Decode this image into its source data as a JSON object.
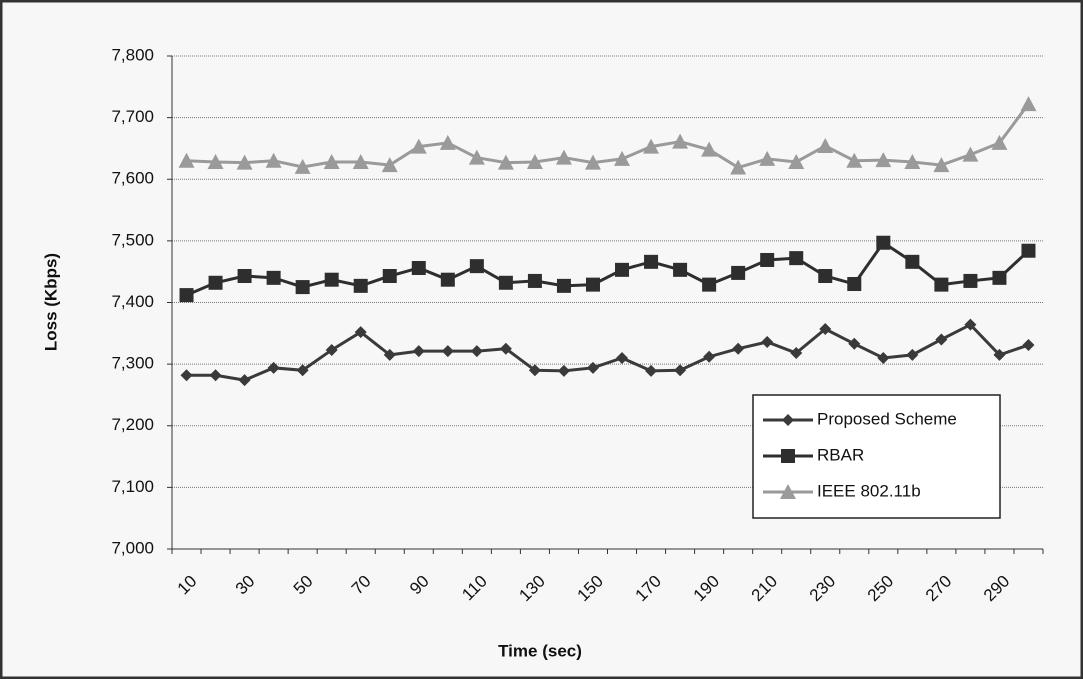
{
  "chart_data": {
    "type": "line",
    "x_label": "Time (sec)",
    "y_label": "Loss (Kbps)",
    "categories": [
      "10",
      null,
      "30",
      null,
      "50",
      null,
      "70",
      null,
      "90",
      null,
      "110",
      null,
      "130",
      null,
      "150",
      null,
      "170",
      null,
      "190",
      null,
      "210",
      null,
      "230",
      null,
      "250",
      null,
      "270",
      null,
      "290",
      null
    ],
    "series": [
      {
        "name": "Proposed Scheme",
        "color": "#3a3a3a",
        "marker": "diamond",
        "values": [
          7282,
          7282,
          7274,
          7294,
          7290,
          7323,
          7352,
          7315,
          7321,
          7321,
          7321,
          7325,
          7290,
          7289,
          7294,
          7310,
          7289,
          7290,
          7312,
          7325,
          7336,
          7318,
          7357,
          7333,
          7310,
          7315,
          7340,
          7364,
          7315,
          7331
        ]
      },
      {
        "name": "RBAR",
        "color": "#2e2e2e",
        "marker": "square",
        "values": [
          7412,
          7432,
          7443,
          7440,
          7425,
          7437,
          7427,
          7443,
          7456,
          7437,
          7459,
          7432,
          7435,
          7427,
          7429,
          7453,
          7466,
          7453,
          7429,
          7448,
          7469,
          7472,
          7443,
          7430,
          7497,
          7466,
          7429,
          7435,
          7440,
          7484
        ]
      },
      {
        "name": "IEEE 802.11b",
        "color": "#9a9a9a",
        "marker": "triangle",
        "values": [
          7630,
          7628,
          7627,
          7630,
          7620,
          7628,
          7628,
          7623,
          7653,
          7659,
          7635,
          7627,
          7628,
          7635,
          7627,
          7633,
          7653,
          7661,
          7648,
          7619,
          7633,
          7628,
          7654,
          7630,
          7631,
          7628,
          7623,
          7640,
          7659,
          7722
        ]
      }
    ],
    "ylim": [
      7000,
      7800
    ],
    "yticks": [
      {
        "value": 7000,
        "label": "7,000"
      },
      {
        "value": 7100,
        "label": "7,100"
      },
      {
        "value": 7200,
        "label": "7,200"
      },
      {
        "value": 7300,
        "label": "7,300"
      },
      {
        "value": 7400,
        "label": "7,400"
      },
      {
        "value": 7500,
        "label": "7,500"
      },
      {
        "value": 7600,
        "label": "7,600"
      },
      {
        "value": 7700,
        "label": "7,700"
      },
      {
        "value": 7800,
        "label": "7,800"
      }
    ],
    "grid": true,
    "legend": "lower-right"
  }
}
